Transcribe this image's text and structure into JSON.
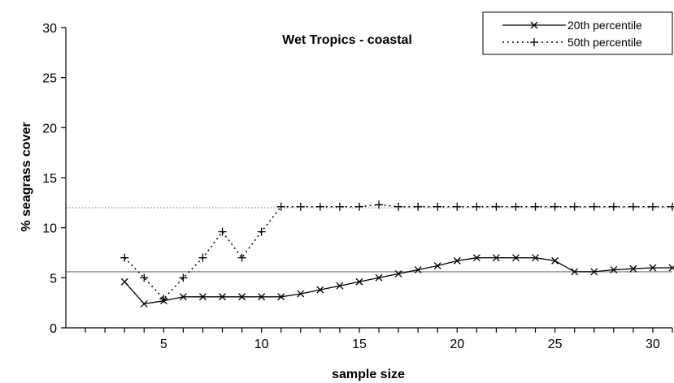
{
  "chart_data": {
    "type": "line",
    "title": "Wet Tropics - coastal",
    "xlabel": "sample size",
    "ylabel": "% seagrass cover",
    "xlim": [
      0,
      31
    ],
    "ylim": [
      0,
      30
    ],
    "x_ticks": [
      5,
      10,
      15,
      20,
      25,
      30
    ],
    "y_ticks": [
      0,
      5,
      10,
      15,
      20,
      25,
      30
    ],
    "x_ticks_text": [
      "5",
      "10",
      "15",
      "20",
      "25",
      "30"
    ],
    "y_ticks_text": [
      "0",
      "5",
      "10",
      "15",
      "20",
      "25",
      "30"
    ],
    "grid": false,
    "legend_position": "top-right",
    "x": [
      3,
      4,
      5,
      6,
      7,
      8,
      9,
      10,
      11,
      12,
      13,
      14,
      15,
      16,
      17,
      18,
      19,
      20,
      21,
      22,
      23,
      24,
      25,
      26,
      27,
      28,
      29,
      30,
      31
    ],
    "series": [
      {
        "name": "20th percentile",
        "style": "solid",
        "marker": "x",
        "color": "#000000",
        "values": [
          4.6,
          2.4,
          2.7,
          3.1,
          3.1,
          3.1,
          3.1,
          3.1,
          3.1,
          3.4,
          3.8,
          4.2,
          4.6,
          5.0,
          5.4,
          5.8,
          6.2,
          6.7,
          7.0,
          7.0,
          7.0,
          7.0,
          6.7,
          5.6,
          5.6,
          5.8,
          5.9,
          6.0,
          6.0
        ]
      },
      {
        "name": "50th percentile",
        "style": "dotted",
        "marker": "+",
        "color": "#000000",
        "values": [
          7.0,
          5.0,
          2.9,
          5.0,
          7.0,
          9.6,
          7.0,
          9.6,
          12.1,
          12.1,
          12.1,
          12.1,
          12.1,
          12.3,
          12.1,
          12.1,
          12.1,
          12.1,
          12.1,
          12.1,
          12.1,
          12.1,
          12.1,
          12.1,
          12.1,
          12.1,
          12.1,
          12.1,
          12.1
        ]
      }
    ],
    "reference_lines": [
      {
        "y": 12.0,
        "style": "dotted",
        "color": "#8c8c8c"
      },
      {
        "y": 5.6,
        "style": "solid",
        "color": "#8c8c8c"
      }
    ]
  }
}
